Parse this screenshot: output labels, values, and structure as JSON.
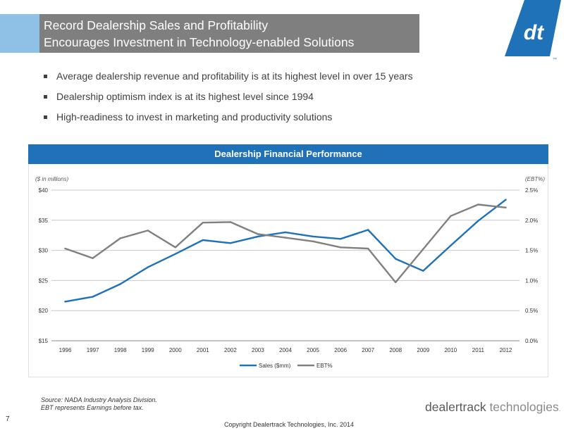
{
  "title": {
    "line1": "Record Dealership Sales and Profitability",
    "line2": "Encourages Investment in Technology-enabled Solutions"
  },
  "logo": {
    "text": "dt",
    "tm": "™",
    "color": "#1f72b8"
  },
  "bullets": [
    "Average dealership revenue and profitability is at its highest level in over 15 years",
    "Dealership optimism index is at its highest level since 1994",
    "High-readiness to invest in marketing and productivity solutions"
  ],
  "chart_header": "Dealership Financial Performance",
  "chart_data": {
    "type": "line",
    "title": "Dealership Financial Performance",
    "ylabel_left": "($ in millions)",
    "ylabel_right": "(EBT%)",
    "x": [
      "1996",
      "1997",
      "1998",
      "1999",
      "2000",
      "2001",
      "2002",
      "2003",
      "2004",
      "2005",
      "2006",
      "2007",
      "2008",
      "2009",
      "2010",
      "2011",
      "2012"
    ],
    "y_left_ticks": [
      "$40",
      "$35",
      "$30",
      "$25",
      "$20",
      "$15"
    ],
    "y_right_ticks": [
      "2.5%",
      "2.0%",
      "1.5%",
      "1.0%",
      "0.5%",
      "0.0%"
    ],
    "ylim_left": [
      15,
      40
    ],
    "ylim_right": [
      0,
      2.5
    ],
    "grid": true,
    "legend_position": "bottom",
    "series": [
      {
        "name": "Sales ($mm)",
        "axis": "left",
        "color": "#1f72b8",
        "values": [
          21.5,
          22.3,
          24.4,
          27.2,
          29.4,
          31.7,
          31.2,
          32.3,
          33.0,
          32.3,
          31.9,
          33.4,
          28.6,
          26.6,
          30.8,
          34.9,
          38.4
        ]
      },
      {
        "name": "EBT%",
        "axis": "right",
        "color": "#808080",
        "values": [
          1.53,
          1.37,
          1.7,
          1.83,
          1.55,
          1.96,
          1.97,
          1.77,
          1.71,
          1.65,
          1.55,
          1.53,
          0.97,
          1.52,
          2.07,
          2.26,
          2.21
        ]
      }
    ]
  },
  "source_line1": "Source: NADA Industry Analysis Division.",
  "source_line2": "EBT represents Earnings before tax.",
  "page_number": "7",
  "brand": {
    "part1": "dealertrack",
    "part2": " technologies",
    "dot": "."
  },
  "copyright": "Copyright Dealertrack Technologies, Inc. 2014"
}
